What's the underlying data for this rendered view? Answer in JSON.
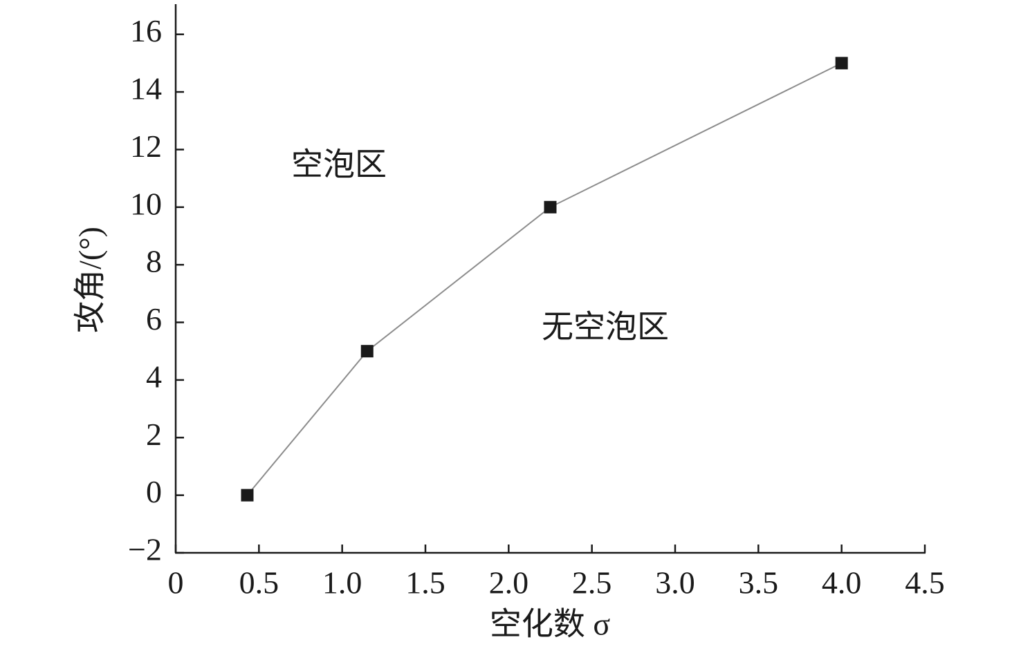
{
  "chart_data": {
    "type": "line",
    "xlabel": "空化数 σ",
    "ylabel": "攻角/(°)",
    "annotations": [
      "空泡区",
      "无空泡区"
    ],
    "series": [
      {
        "color": "#1a1a1a",
        "line_color": "#8c8c8c",
        "marker": "square",
        "x": [
          0.43,
          1.15,
          2.25,
          4.0
        ],
        "values": [
          0,
          5,
          10,
          15
        ]
      }
    ],
    "xlim": [
      0,
      4.5
    ],
    "xticks": [
      0,
      0.5,
      {
        "value": 1,
        "label": "1.0"
      },
      1.5,
      {
        "value": 2,
        "label": "2.0"
      },
      2.5,
      {
        "value": 3,
        "label": "3.0"
      },
      3.5,
      {
        "value": 4,
        "label": "4.0"
      },
      4.5
    ],
    "ylim": [
      -2,
      17
    ],
    "yticks": [
      {
        "value": -2,
        "label": "−2"
      },
      0,
      2,
      4,
      6,
      8,
      10,
      12,
      14,
      16
    ],
    "grid": false
  }
}
